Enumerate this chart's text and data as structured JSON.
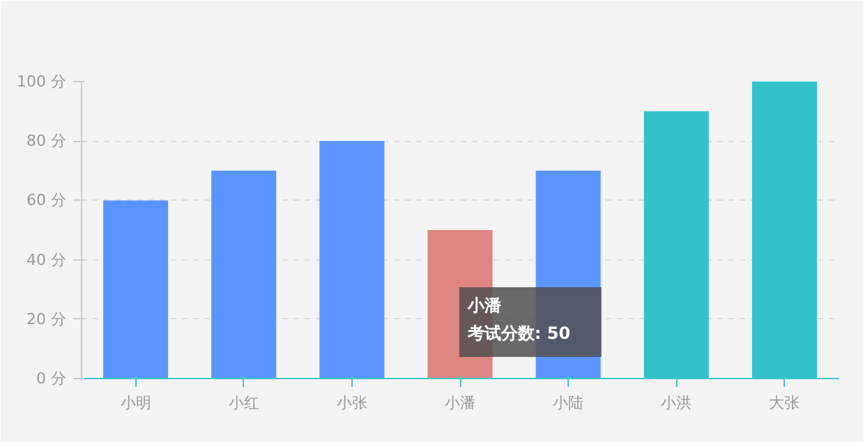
{
  "chart_data": {
    "type": "bar",
    "categories": [
      "小明",
      "小红",
      "小张",
      "小潘",
      "小陆",
      "小洪",
      "大张"
    ],
    "series": [
      {
        "colors": [
          "#5a95ff",
          "#5a95ff",
          "#5a95ff",
          "#df8682",
          "#5a95ff",
          "#32c2cb",
          "#32c2cb"
        ],
        "values": [
          60,
          70,
          80,
          50,
          70,
          90,
          100
        ]
      }
    ],
    "ylim": [
      0,
      100
    ],
    "yticks": [
      {
        "value": 0,
        "label": "0 分"
      },
      {
        "value": 20,
        "label": "20 分"
      },
      {
        "value": 40,
        "label": "40 分"
      },
      {
        "value": 60,
        "label": "60 分"
      },
      {
        "value": 80,
        "label": "80 分"
      },
      {
        "value": 100,
        "label": "100 分"
      }
    ],
    "grid": "y",
    "annotations": [
      "小潘",
      "考试分数: 50"
    ]
  }
}
